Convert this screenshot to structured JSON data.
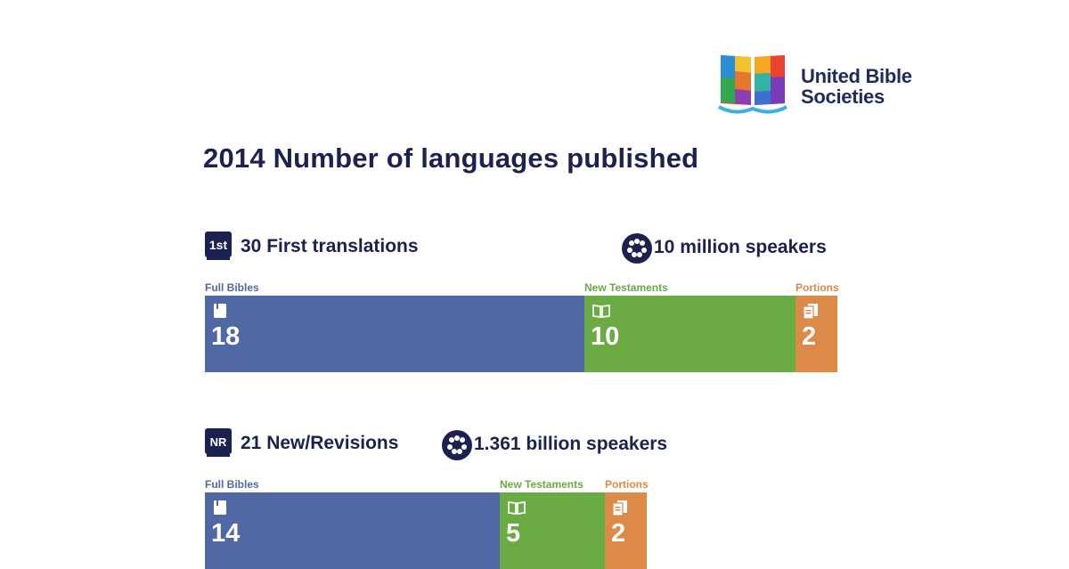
{
  "brand": {
    "name_line1": "United Bible",
    "name_line2": "Societies"
  },
  "title": "2014 Number of languages published",
  "colors": {
    "full_bibles": "#5068a3",
    "new_testaments": "#6aab43",
    "portions": "#dc8a47",
    "navy": "#1b2252"
  },
  "chart_data": [
    {
      "type": "bar",
      "orientation": "horizontal-stacked",
      "badge": "1st",
      "badge_icon": "first-translation-icon",
      "heading": "30 First translations",
      "speakers_icon": "people-icon",
      "speakers": "10 million speakers",
      "categories": [
        "Full Bibles",
        "New Testaments",
        "Portions"
      ],
      "values": [
        18,
        10,
        2
      ],
      "value_labels": [
        "18",
        "10",
        "2"
      ],
      "icons": [
        "book-icon",
        "open-book-icon",
        "pages-icon"
      ]
    },
    {
      "type": "bar",
      "orientation": "horizontal-stacked",
      "badge": "NR",
      "badge_icon": "new-revision-icon",
      "heading": "21 New/Revisions",
      "speakers_icon": "people-icon",
      "speakers": "1.361 billion speakers",
      "categories": [
        "Full Bibles",
        "New Testaments",
        "Portions"
      ],
      "values": [
        14,
        5,
        2
      ],
      "value_labels": [
        "14",
        "5",
        "2"
      ],
      "icons": [
        "book-icon",
        "open-book-icon",
        "pages-icon"
      ]
    }
  ]
}
